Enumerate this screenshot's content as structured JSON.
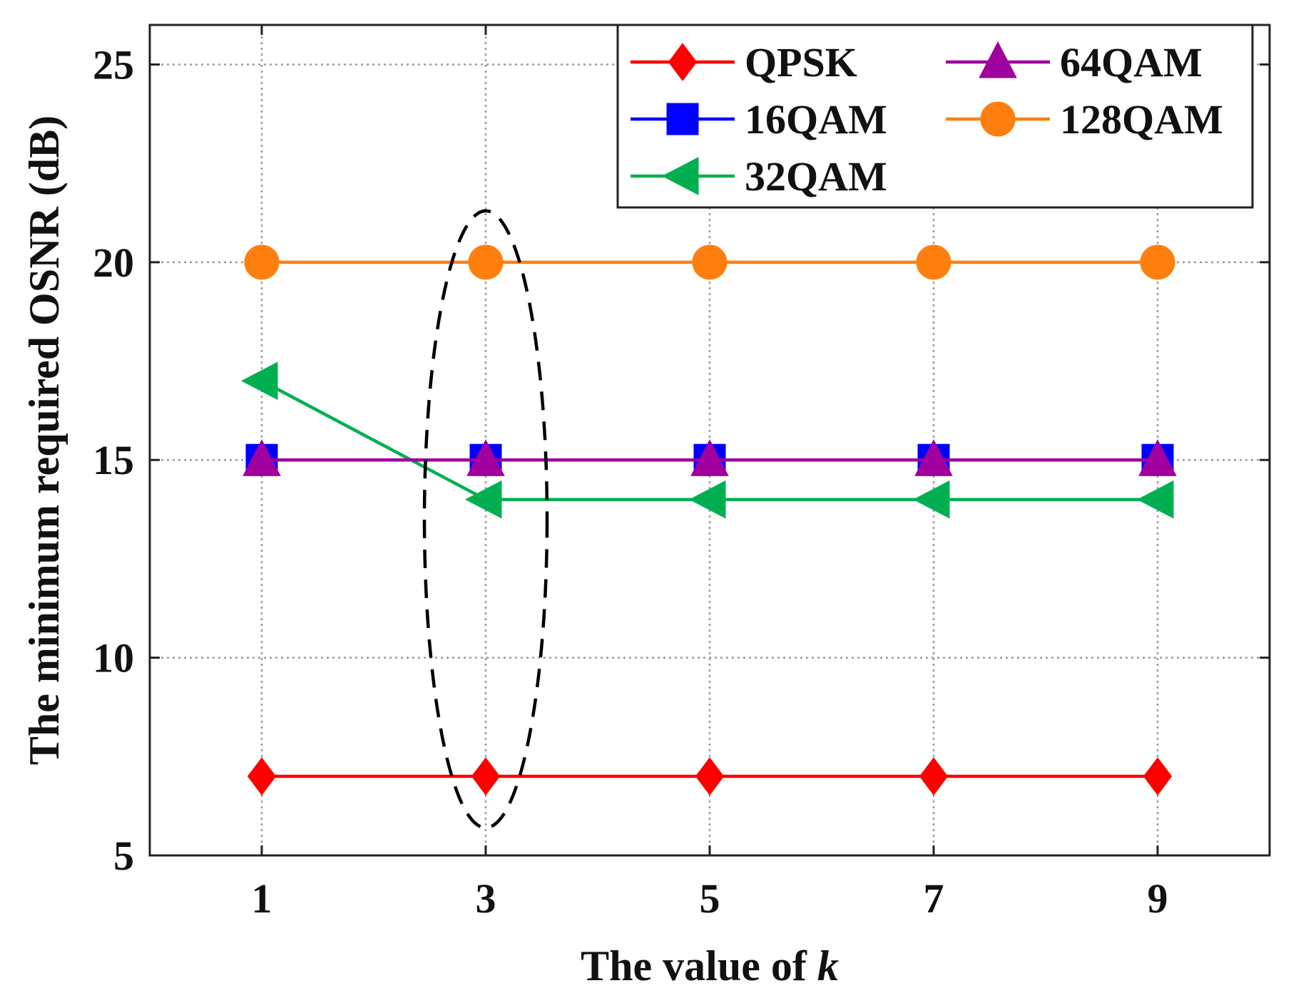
{
  "chart_data": {
    "type": "line",
    "title": "",
    "xlabel_main": "The value of ",
    "xlabel_var": "k",
    "ylabel": "The minimum required OSNR (dB)",
    "x": [
      1,
      3,
      5,
      7,
      9
    ],
    "xlim": [
      0,
      10
    ],
    "ylim": [
      5,
      26
    ],
    "xticks": [
      1,
      3,
      5,
      7,
      9
    ],
    "yticks": [
      5,
      10,
      15,
      20,
      25
    ],
    "grid": true,
    "legend_position": "top-right",
    "series": [
      {
        "name": "QPSK",
        "values": [
          7,
          7,
          7,
          7,
          7
        ],
        "color": "#ff0000",
        "marker": "diamond"
      },
      {
        "name": "16QAM",
        "values": [
          15,
          15,
          15,
          15,
          15
        ],
        "color": "#0000ff",
        "marker": "square"
      },
      {
        "name": "32QAM",
        "values": [
          17,
          14,
          14,
          14,
          14
        ],
        "color": "#00b050",
        "marker": "triangle-left"
      },
      {
        "name": "64QAM",
        "values": [
          15,
          15,
          15,
          15,
          15
        ],
        "color": "#a000a0",
        "marker": "triangle-up"
      },
      {
        "name": "128QAM",
        "values": [
          20,
          20,
          20,
          20,
          20
        ],
        "color": "#ff7f0e",
        "marker": "circle"
      }
    ],
    "annotations": [
      {
        "type": "dashed-ellipse",
        "x_center": 3,
        "y_range": [
          5.7,
          21.3
        ]
      }
    ]
  }
}
